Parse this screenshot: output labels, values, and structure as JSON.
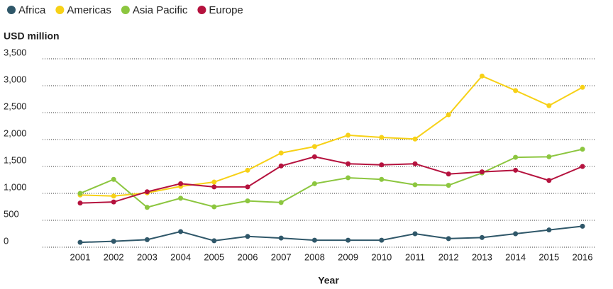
{
  "chart_data": {
    "type": "line",
    "ylabel": "USD million",
    "xlabel": "Year",
    "categories": [
      "2001",
      "2002",
      "2003",
      "2004",
      "2005",
      "2006",
      "2007",
      "2008",
      "2009",
      "2010",
      "2011",
      "2012",
      "2013",
      "2014",
      "2015",
      "2016"
    ],
    "series": [
      {
        "name": "Africa",
        "color": "#2f5769",
        "values": [
          90,
          110,
          140,
          290,
          120,
          200,
          170,
          130,
          130,
          130,
          250,
          160,
          180,
          250,
          320,
          390
        ]
      },
      {
        "name": "Americas",
        "color": "#f7d117",
        "values": [
          970,
          950,
          1010,
          1130,
          1210,
          1430,
          1750,
          1870,
          2080,
          2040,
          2010,
          2460,
          3180,
          2910,
          2630,
          2970
        ]
      },
      {
        "name": "Asia Pacific",
        "color": "#8cc63f",
        "values": [
          1000,
          1260,
          740,
          910,
          750,
          860,
          830,
          1180,
          1290,
          1260,
          1160,
          1150,
          1380,
          1670,
          1680,
          1820
        ]
      },
      {
        "name": "Europe",
        "color": "#b5123e",
        "values": [
          820,
          840,
          1030,
          1180,
          1120,
          1120,
          1510,
          1680,
          1550,
          1530,
          1550,
          1360,
          1400,
          1430,
          1240,
          1500
        ]
      }
    ],
    "ylim": [
      0,
      3500
    ],
    "yticks": [
      0,
      500,
      {
        "value": 1000,
        "label": "1,000"
      },
      {
        "value": 1500,
        "label": "1,500"
      },
      {
        "value": 2000,
        "label": "2,000"
      },
      {
        "value": 2500,
        "label": "2,500"
      },
      {
        "value": 3000,
        "label": "3,000"
      },
      {
        "value": 3500,
        "label": "3,500"
      }
    ],
    "grid": true,
    "legend": "top-left"
  }
}
